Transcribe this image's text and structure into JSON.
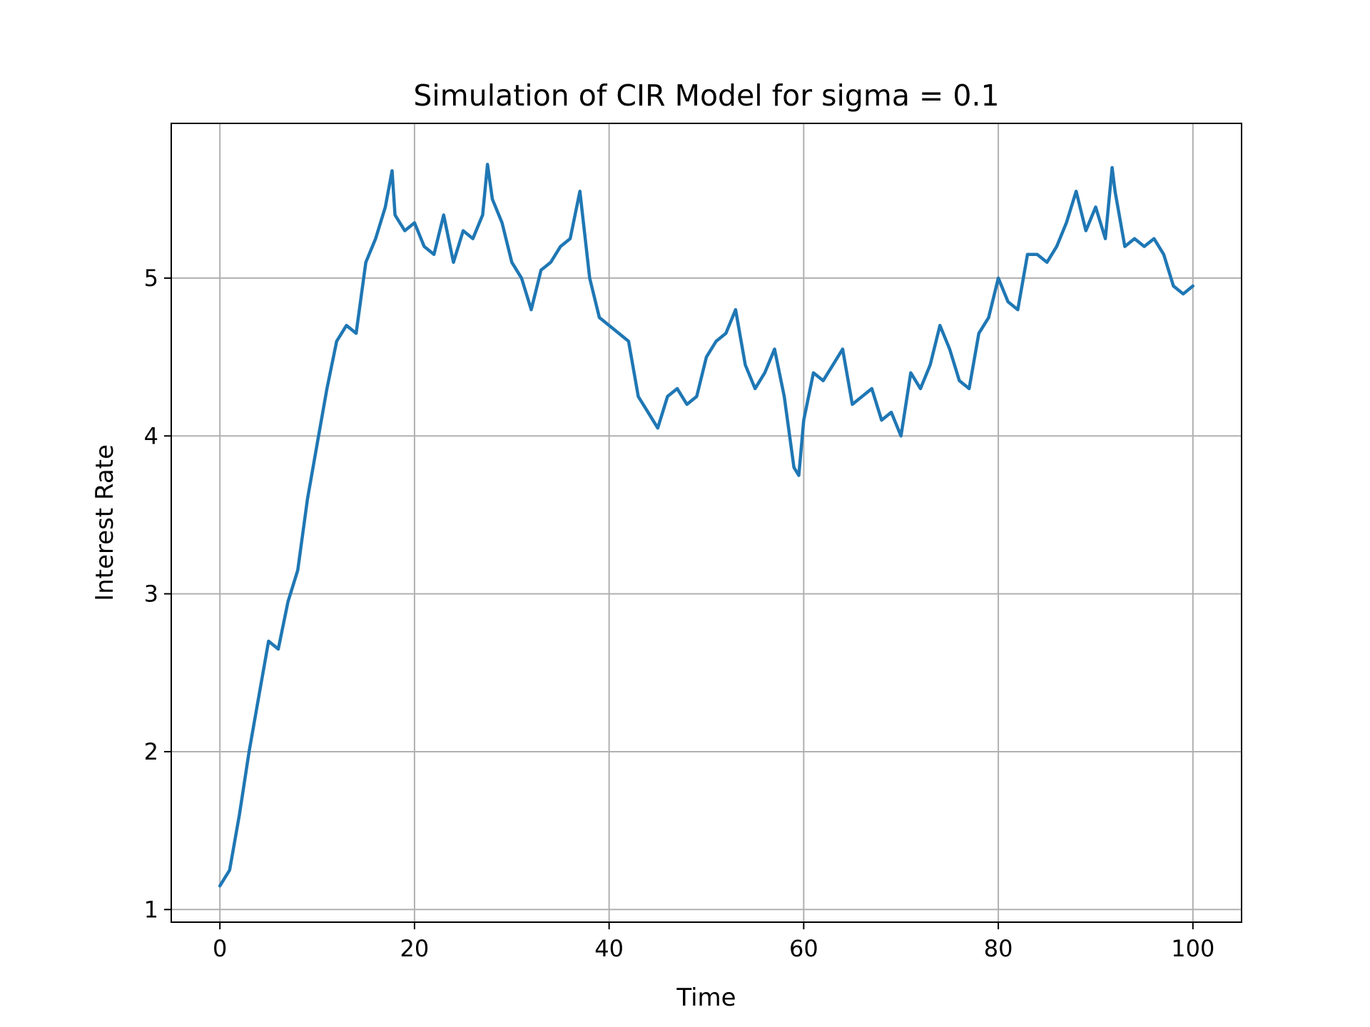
{
  "chart_data": {
    "type": "line",
    "title": "Simulation of CIR Model for sigma = 0.1",
    "xlabel": "Time",
    "ylabel": "Interest Rate",
    "xlim": [
      -5,
      105
    ],
    "ylim": [
      0.92,
      5.98
    ],
    "xticks": [
      0,
      20,
      40,
      60,
      80,
      100
    ],
    "yticks": [
      1,
      2,
      3,
      4,
      5
    ],
    "xtick_labels": [
      "0",
      "20",
      "40",
      "60",
      "80",
      "100"
    ],
    "ytick_labels": [
      "1",
      "2",
      "3",
      "4",
      "5"
    ],
    "grid": true,
    "colors": {
      "line": "#1f77b4",
      "grid": "#b0b0b0",
      "axes": "#000000",
      "background": "#ffffff"
    },
    "series": [
      {
        "x": [
          0,
          1,
          2,
          3,
          4,
          5,
          6,
          7,
          8,
          9,
          10,
          11,
          12,
          13,
          14,
          15,
          16,
          17,
          17.7,
          18,
          19,
          20,
          21,
          22,
          23,
          24,
          25,
          26,
          27,
          27.5,
          28,
          29,
          30,
          31,
          32,
          33,
          34,
          35,
          36,
          37,
          38,
          39,
          40,
          41,
          42,
          43,
          44,
          45,
          46,
          47,
          48,
          49,
          50,
          51,
          52,
          53,
          54,
          55,
          56,
          57,
          58,
          59,
          59.5,
          60,
          61,
          62,
          63,
          64,
          65,
          66,
          67,
          68,
          69,
          70,
          71,
          72,
          73,
          74,
          75,
          76,
          77,
          78,
          79,
          80,
          81,
          82,
          83,
          84,
          85,
          86,
          87,
          88,
          89,
          90,
          91,
          91.7,
          92,
          93,
          94,
          95,
          96,
          97,
          98,
          99,
          100
        ],
        "y": [
          1.15,
          1.25,
          1.6,
          2.0,
          2.35,
          2.7,
          2.65,
          2.95,
          3.15,
          3.6,
          3.95,
          4.3,
          4.6,
          4.7,
          4.65,
          5.1,
          5.25,
          5.45,
          5.68,
          5.4,
          5.3,
          5.35,
          5.2,
          5.15,
          5.4,
          5.1,
          5.3,
          5.25,
          5.4,
          5.72,
          5.5,
          5.35,
          5.1,
          5.0,
          4.8,
          5.05,
          5.1,
          5.2,
          5.25,
          5.55,
          5.0,
          4.75,
          4.7,
          4.65,
          4.6,
          4.25,
          4.15,
          4.05,
          4.25,
          4.3,
          4.2,
          4.25,
          4.5,
          4.6,
          4.65,
          4.8,
          4.45,
          4.3,
          4.4,
          4.55,
          4.25,
          3.8,
          3.75,
          4.1,
          4.4,
          4.35,
          4.45,
          4.55,
          4.2,
          4.25,
          4.3,
          4.1,
          4.15,
          4.0,
          4.4,
          4.3,
          4.45,
          4.7,
          4.55,
          4.35,
          4.3,
          4.65,
          4.75,
          5.0,
          4.85,
          4.8,
          5.15,
          5.15,
          5.1,
          5.2,
          5.35,
          5.55,
          5.3,
          5.45,
          5.25,
          5.7,
          5.55,
          5.2,
          5.25,
          5.2,
          5.25,
          5.15,
          4.95,
          4.9,
          4.95
        ]
      }
    ]
  }
}
